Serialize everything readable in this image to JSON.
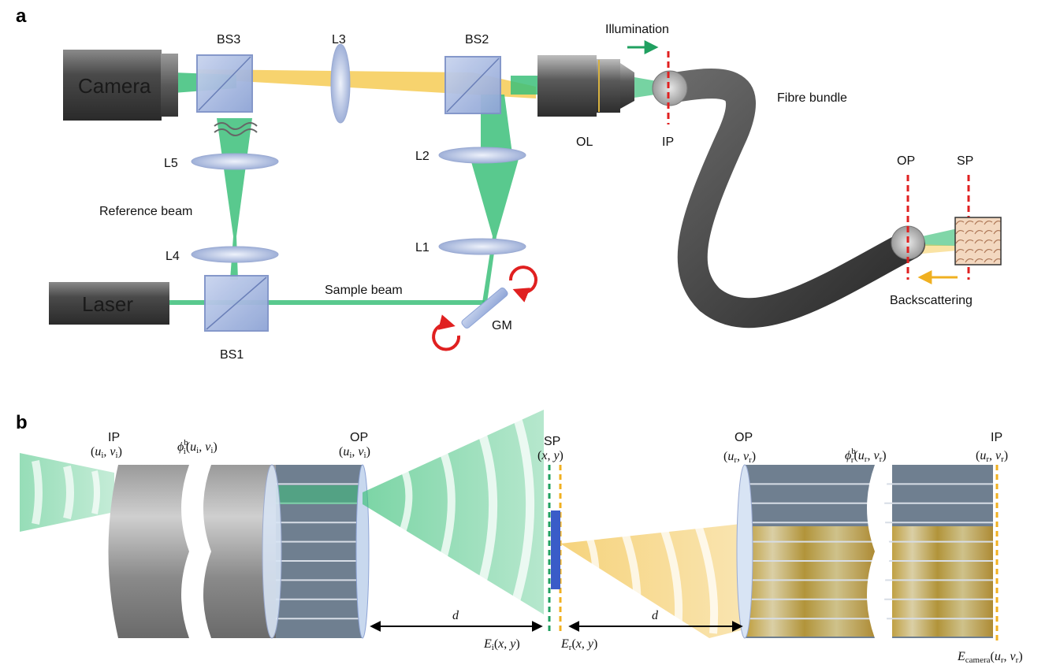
{
  "panel_a": {
    "letter": "a",
    "camera": "Camera",
    "laser": "Laser",
    "bs3": "BS3",
    "l3": "L3",
    "bs2": "BS2",
    "bs1": "BS1",
    "l5": "L5",
    "l4": "L4",
    "l2": "L2",
    "l1": "L1",
    "ol": "OL",
    "ip": "IP",
    "op": "OP",
    "sp": "SP",
    "gm": "GM",
    "illumination": "Illumination",
    "fibre_bundle": "Fibre bundle",
    "reference_beam": "Reference beam",
    "sample_beam": "Sample beam",
    "backscattering": "Backscattering"
  },
  "panel_b": {
    "letter": "b",
    "ip_left": "IP",
    "ip_left_coord": "(u",
    "phi_left_sym": "ϕ",
    "op_left": "OP",
    "sp": "SP",
    "sp_coord": "(x, y)",
    "op_right": "OP",
    "phi_right_sym": "ϕ",
    "ip_right": "IP",
    "distance_left": "d",
    "distance_right": "d",
    "e_i_prefix": "E",
    "e_r_prefix": "E",
    "e_camera_prefix": "E"
  },
  "colors": {
    "green": "#3cc07a",
    "yellow": "#f5c84a",
    "red_dashed": "#e02020",
    "orange_dashed": "#f0b020",
    "green_dashed": "#20a060",
    "blue_sample": "#3a5cc8"
  }
}
